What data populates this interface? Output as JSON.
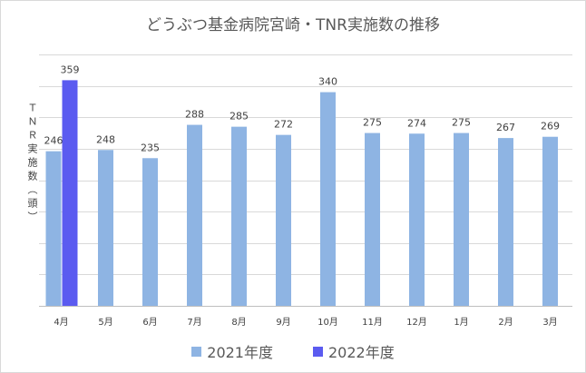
{
  "chart_data": {
    "type": "bar",
    "title": "どうぶつ基金病院宮崎・TNR実施数の推移",
    "ylabel": "ＴＮＲ実施数（頭）",
    "xlabel": "",
    "categories": [
      "4月",
      "5月",
      "6月",
      "7月",
      "8月",
      "9月",
      "10月",
      "11月",
      "12月",
      "1月",
      "2月",
      "3月"
    ],
    "series": [
      {
        "name": "2021年度",
        "color": "#8EB4E3",
        "values": [
          246,
          248,
          235,
          288,
          285,
          272,
          340,
          275,
          274,
          275,
          267,
          269
        ]
      },
      {
        "name": "2022年度",
        "color": "#5B5BF0",
        "values": [
          359,
          null,
          null,
          null,
          null,
          null,
          null,
          null,
          null,
          null,
          null,
          null
        ]
      }
    ],
    "ylim": [
      0,
      400
    ],
    "grid": true,
    "legend_position": "bottom"
  }
}
